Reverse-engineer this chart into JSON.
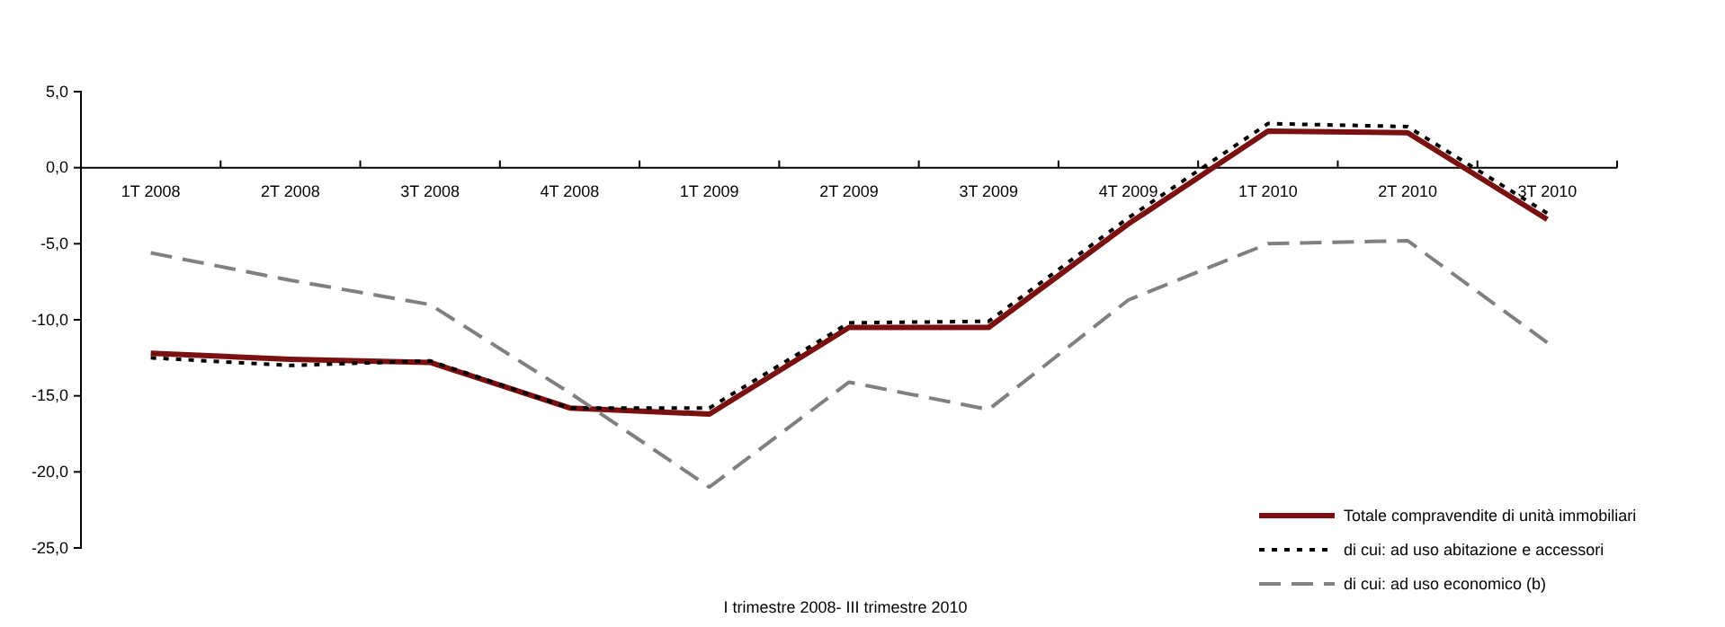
{
  "chart_data": {
    "type": "line",
    "xlabel": "I trimestre 2008- III trimestre 2010",
    "categories": [
      "1T 2008",
      "2T 2008",
      "3T 2008",
      "4T 2008",
      "1T 2009",
      "2T 2009",
      "3T 2009",
      "4T 2009",
      "1T 2010",
      "2T 2010",
      "3T 2010"
    ],
    "ylim": [
      -25,
      5
    ],
    "yticks": [
      {
        "value": -25,
        "label": "-25,0"
      },
      {
        "value": -20,
        "label": "-20,0"
      },
      {
        "value": -15,
        "label": "-15,0"
      },
      {
        "value": -10,
        "label": "-10,0"
      },
      {
        "value": -5,
        "label": "-5,0"
      },
      {
        "value": 0,
        "label": "0,0"
      },
      {
        "value": 5,
        "label": "5,0"
      }
    ],
    "grid": false,
    "legend": "bottom right",
    "marker": "none",
    "series": [
      {
        "name": "Totale compravendite di unità immobiliari",
        "color": "#7b1010",
        "line_style": "solid",
        "values": [
          -12.2,
          -12.6,
          -12.8,
          -15.8,
          -16.2,
          -10.5,
          -10.5,
          -3.7,
          2.4,
          2.3,
          -3.4
        ]
      },
      {
        "name": "di cui: ad uso abitazione e accessori",
        "color": "#000000",
        "line_style": "dotted",
        "values": [
          -12.5,
          -13.0,
          -12.7,
          -15.8,
          -15.8,
          -10.2,
          -10.1,
          -3.3,
          2.9,
          2.7,
          -3.0
        ]
      },
      {
        "name": "di cui: ad uso economico (b)",
        "color": "#808080",
        "line_style": "dashed",
        "values": [
          -5.6,
          -7.4,
          -9.0,
          -14.8,
          -21.0,
          -14.1,
          -15.9,
          -8.7,
          -5.0,
          -4.8,
          -11.5
        ]
      }
    ]
  }
}
